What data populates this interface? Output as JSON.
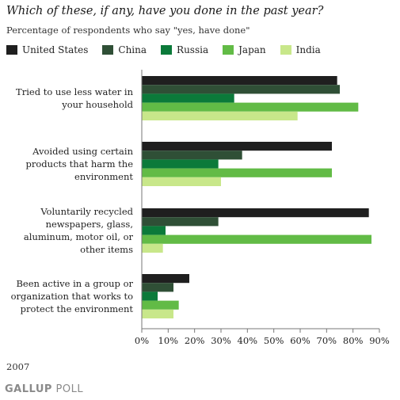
{
  "title": "Which of these, if any, have you done in the past year?",
  "subtitle": "Percentage of respondents who say \"yes, have done\"",
  "year": "2007",
  "brand": {
    "main": "GALLUP",
    "suffix": " POLL"
  },
  "chart_data": {
    "type": "bar",
    "orientation": "horizontal",
    "categories": [
      [
        "Tried to use less water in",
        "your household"
      ],
      [
        "Avoided using certain",
        "products that harm the",
        "environment"
      ],
      [
        "Voluntarily recycled",
        "newspapers, glass,",
        "aluminum, motor oil, or",
        "other items"
      ],
      [
        "Been active in a group or",
        "organization that works to",
        "protect the environment"
      ]
    ],
    "series": [
      {
        "name": "United States",
        "color": "#1f1f1f",
        "values": [
          74,
          72,
          86,
          18
        ]
      },
      {
        "name": "China",
        "color": "#2f4f36",
        "values": [
          75,
          38,
          29,
          12
        ]
      },
      {
        "name": "Russia",
        "color": "#0b7a3a",
        "values": [
          35,
          29,
          9,
          6
        ]
      },
      {
        "name": "Japan",
        "color": "#62bb46",
        "values": [
          82,
          72,
          87,
          14
        ]
      },
      {
        "name": "India",
        "color": "#c8e78a",
        "values": [
          59,
          30,
          8,
          12
        ]
      }
    ],
    "xlim": [
      0,
      90
    ],
    "xticks": [
      "0%",
      "10%",
      "20%",
      "30%",
      "40%",
      "50%",
      "60%",
      "70%",
      "80%",
      "90%"
    ],
    "legend_position": "top",
    "grid": false
  }
}
